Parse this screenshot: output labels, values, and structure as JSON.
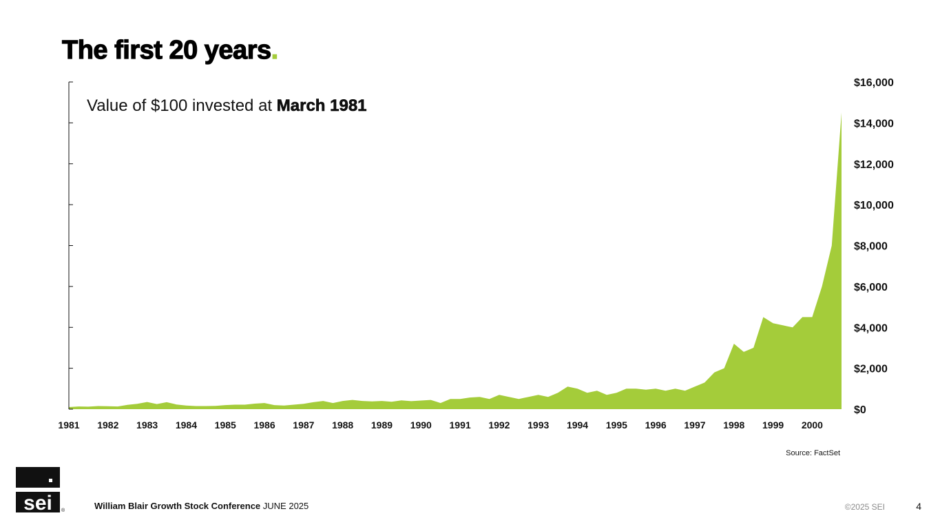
{
  "slide": {
    "title": "The first 20 years",
    "title_dot": ".",
    "subtitle_prefix": "Value of $100 invested at ",
    "subtitle_bold": "March 1981",
    "source": "Source: FactSet",
    "footer_conference": "William Blair Growth Stock Conference",
    "footer_date": "JUNE  2025",
    "copyright": "©2025 SEI",
    "page_number": "4",
    "logo_text": "sei"
  },
  "colors": {
    "area": "#a4cc3a",
    "accent": "#a4cc3a",
    "text": "#111111"
  },
  "chart_data": {
    "type": "area",
    "title": "Value of $100 invested at March 1981",
    "xlabel": "",
    "ylabel": "",
    "x_ticks": [
      "1981",
      "1982",
      "1983",
      "1984",
      "1985",
      "1986",
      "1987",
      "1988",
      "1989",
      "1990",
      "1991",
      "1992",
      "1993",
      "1994",
      "1995",
      "1996",
      "1997",
      "1998",
      "1999",
      "2000"
    ],
    "y_ticks": [
      "$0",
      "$2,000",
      "$4,000",
      "$6,000",
      "$8,000",
      "$10,000",
      "$12,000",
      "$14,000",
      "$16,000"
    ],
    "ylim": [
      0,
      16000
    ],
    "xlim": [
      1981.0,
      2000.75
    ],
    "y_axis_side": "right",
    "grid": false,
    "legend": "none",
    "series": [
      {
        "x": [
          1981.0,
          1981.25,
          1981.5,
          1981.75,
          1982.0,
          1982.25,
          1982.5,
          1982.75,
          1983.0,
          1983.25,
          1983.5,
          1983.75,
          1984.0,
          1984.25,
          1984.5,
          1984.75,
          1985.0,
          1985.25,
          1985.5,
          1985.75,
          1986.0,
          1986.25,
          1986.5,
          1986.75,
          1987.0,
          1987.25,
          1987.5,
          1987.75,
          1988.0,
          1988.25,
          1988.5,
          1988.75,
          1989.0,
          1989.25,
          1989.5,
          1989.75,
          1990.0,
          1990.25,
          1990.5,
          1990.75,
          1991.0,
          1991.25,
          1991.5,
          1991.75,
          1992.0,
          1992.25,
          1992.5,
          1992.75,
          1993.0,
          1993.25,
          1993.5,
          1993.75,
          1994.0,
          1994.25,
          1994.5,
          1994.75,
          1995.0,
          1995.25,
          1995.5,
          1995.75,
          1996.0,
          1996.25,
          1996.5,
          1996.75,
          1997.0,
          1997.25,
          1997.5,
          1997.75,
          1998.0,
          1998.25,
          1998.5,
          1998.75,
          1999.0,
          1999.25,
          1999.5,
          1999.75,
          2000.0,
          2000.25,
          2000.5,
          2000.75
        ],
        "y": [
          100,
          130,
          120,
          150,
          140,
          130,
          210,
          260,
          350,
          250,
          340,
          230,
          180,
          150,
          150,
          160,
          200,
          220,
          220,
          270,
          300,
          200,
          180,
          220,
          260,
          340,
          400,
          300,
          400,
          450,
          400,
          380,
          400,
          360,
          430,
          390,
          420,
          450,
          300,
          500,
          500,
          570,
          600,
          500,
          700,
          600,
          500,
          600,
          700,
          600,
          800,
          1100,
          1000,
          800,
          900,
          700,
          800,
          1000,
          1000,
          950,
          1000,
          900,
          1000,
          900,
          1100,
          1300,
          1800,
          2000,
          3200,
          2800,
          3000,
          4500,
          4200,
          4100,
          4000,
          4500,
          4500,
          6000,
          8000,
          14500
        ]
      }
    ]
  }
}
